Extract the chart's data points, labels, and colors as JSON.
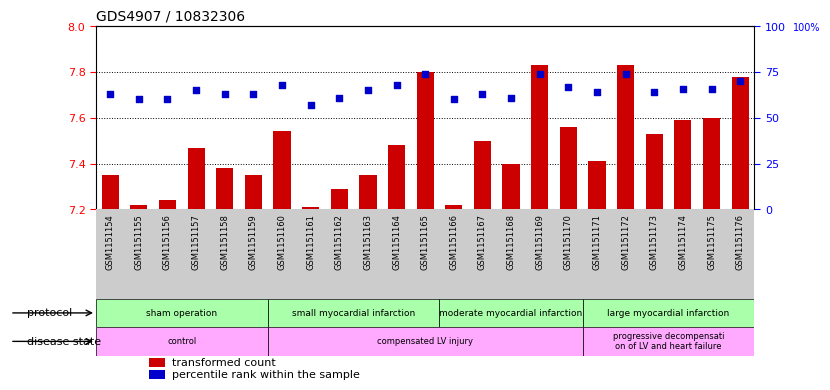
{
  "title": "GDS4907 / 10832306",
  "samples": [
    "GSM1151154",
    "GSM1151155",
    "GSM1151156",
    "GSM1151157",
    "GSM1151158",
    "GSM1151159",
    "GSM1151160",
    "GSM1151161",
    "GSM1151162",
    "GSM1151163",
    "GSM1151164",
    "GSM1151165",
    "GSM1151166",
    "GSM1151167",
    "GSM1151168",
    "GSM1151169",
    "GSM1151170",
    "GSM1151171",
    "GSM1151172",
    "GSM1151173",
    "GSM1151174",
    "GSM1151175",
    "GSM1151176"
  ],
  "transformed_count": [
    7.35,
    7.22,
    7.24,
    7.47,
    7.38,
    7.35,
    7.54,
    7.21,
    7.29,
    7.35,
    7.48,
    7.8,
    7.22,
    7.5,
    7.4,
    7.83,
    7.56,
    7.41,
    7.83,
    7.53,
    7.59,
    7.6,
    7.78
  ],
  "percentile_rank": [
    63,
    60,
    60,
    65,
    63,
    63,
    68,
    57,
    61,
    65,
    68,
    74,
    60,
    63,
    61,
    74,
    67,
    64,
    74,
    64,
    66,
    66,
    70
  ],
  "ylim_left": [
    7.2,
    8.0
  ],
  "ylim_right": [
    0,
    100
  ],
  "yticks_left": [
    7.2,
    7.4,
    7.6,
    7.8,
    8.0
  ],
  "yticks_right": [
    0,
    25,
    50,
    75,
    100
  ],
  "bar_color": "#cc0000",
  "dot_color": "#0000cc",
  "protocol_groups": [
    {
      "label": "sham operation",
      "start": 0,
      "end": 5,
      "color": "#aaffaa"
    },
    {
      "label": "small myocardial infarction",
      "start": 6,
      "end": 11,
      "color": "#aaffaa"
    },
    {
      "label": "moderate myocardial infarction",
      "start": 12,
      "end": 16,
      "color": "#aaffaa"
    },
    {
      "label": "large myocardial infarction",
      "start": 17,
      "end": 22,
      "color": "#aaffaa"
    }
  ],
  "disease_groups": [
    {
      "label": "control",
      "start": 0,
      "end": 5,
      "color": "#ffaaff"
    },
    {
      "label": "compensated LV injury",
      "start": 6,
      "end": 16,
      "color": "#ffaaff"
    },
    {
      "label": "progressive decompensati\non of LV and heart failure",
      "start": 17,
      "end": 22,
      "color": "#ffaaff"
    }
  ],
  "legend_items": [
    {
      "label": "transformed count",
      "color": "#cc0000"
    },
    {
      "label": "percentile rank within the sample",
      "color": "#0000cc"
    }
  ],
  "bg_color": "#ffffff",
  "xtick_bg": "#cccccc",
  "right_axis_label": "100%"
}
